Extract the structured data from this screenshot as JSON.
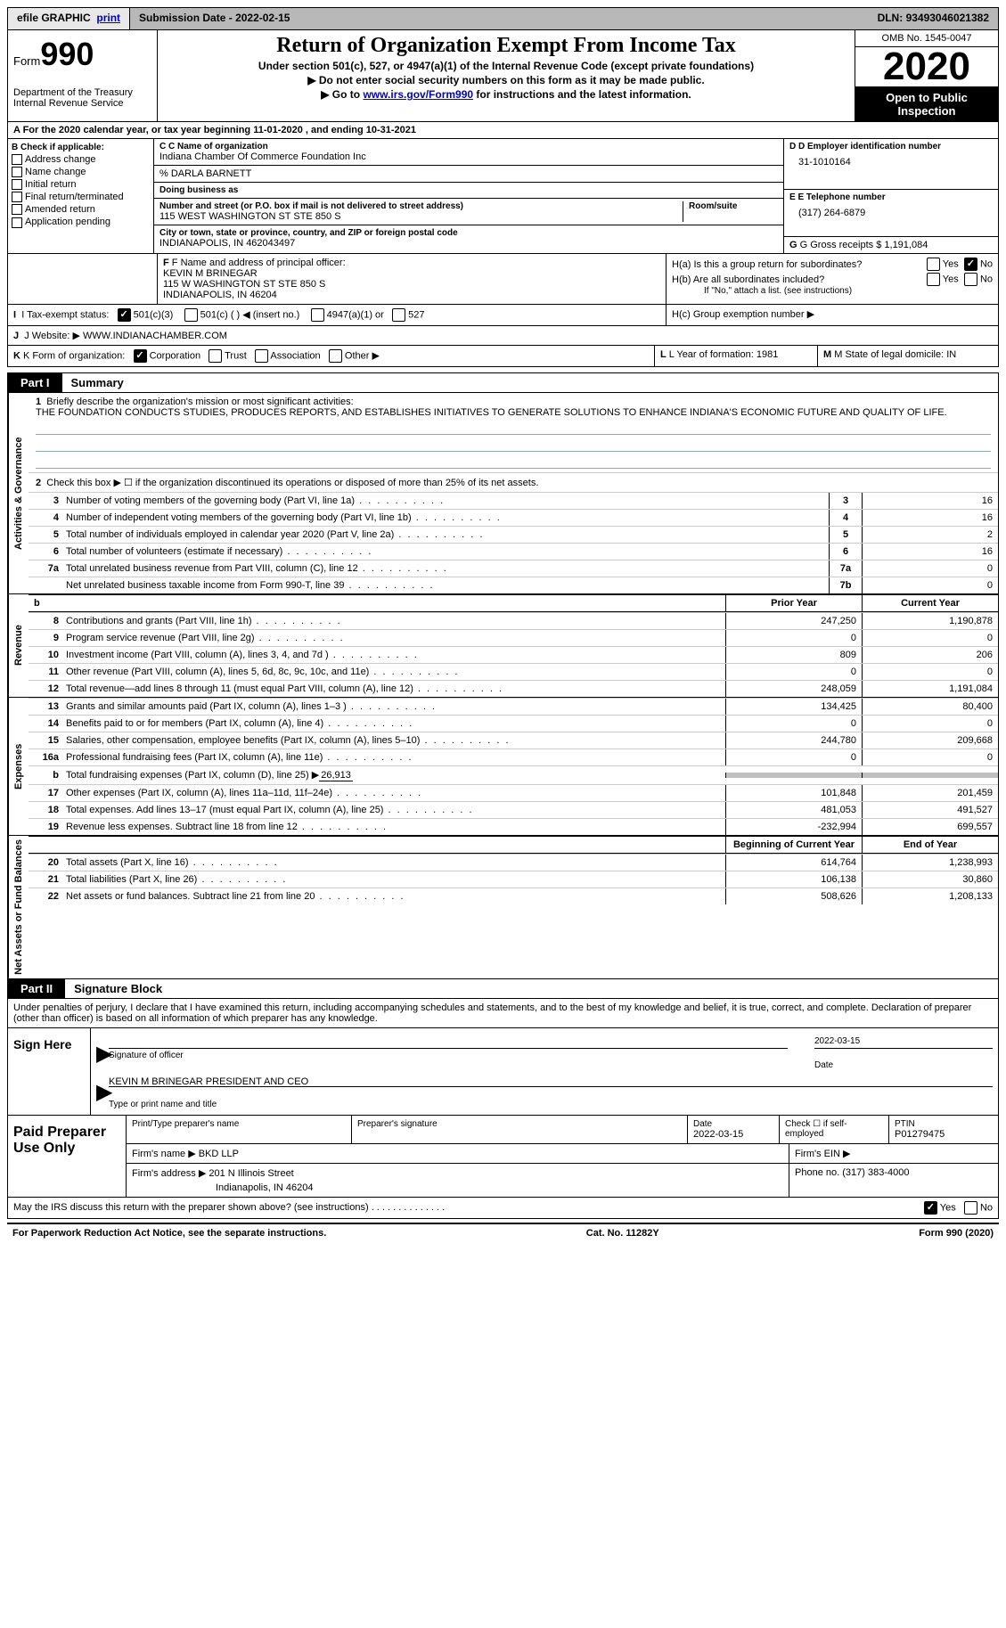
{
  "top": {
    "efile": "efile GRAPHIC",
    "print": "print",
    "sub_label": "Submission Date - ",
    "sub_date": "2022-02-15",
    "dln_label": "DLN: ",
    "dln": "93493046021382"
  },
  "header": {
    "form_word": "Form",
    "form_num": "990",
    "dept": "Department of the Treasury\nInternal Revenue Service",
    "title": "Return of Organization Exempt From Income Tax",
    "subtitle": "Under section 501(c), 527, or 4947(a)(1) of the Internal Revenue Code (except private foundations)",
    "note1": "▶ Do not enter social security numbers on this form as it may be made public.",
    "note2_pre": "▶ Go to ",
    "note2_link": "www.irs.gov/Form990",
    "note2_post": " for instructions and the latest information.",
    "omb": "OMB No. 1545-0047",
    "year": "2020",
    "open1": "Open to Public",
    "open2": "Inspection"
  },
  "period": {
    "text": "A For the 2020 calendar year, or tax year beginning 11-01-2020    , and ending 10-31-2021"
  },
  "sectionB": {
    "label": "B Check if applicable:",
    "items": [
      "Address change",
      "Name change",
      "Initial return",
      "Final return/terminated",
      "Amended return",
      "Application pending"
    ]
  },
  "sectionC": {
    "name_label": "C Name of organization",
    "name": "Indiana Chamber Of Commerce Foundation Inc",
    "care_of": "% DARLA BARNETT",
    "dba_label": "Doing business as",
    "dba": "",
    "street_label": "Number and street (or P.O. box if mail is not delivered to street address)",
    "room_label": "Room/suite",
    "street": "115 WEST WASHINGTON ST STE 850 S",
    "city_label": "City or town, state or province, country, and ZIP or foreign postal code",
    "city": "INDIANAPOLIS, IN  462043497"
  },
  "sectionD": {
    "label": "D Employer identification number",
    "val": "31-1010164"
  },
  "sectionE": {
    "label": "E Telephone number",
    "val": "(317) 264-6879"
  },
  "sectionG": {
    "label": "G Gross receipts $ ",
    "val": "1,191,084"
  },
  "sectionF": {
    "label": "F Name and address of principal officer:",
    "name": "KEVIN M BRINEGAR",
    "addr1": "115 W WASHINGTON ST STE 850 S",
    "addr2": "INDIANAPOLIS, IN  46204"
  },
  "sectionH": {
    "ha": "H(a)  Is this a group return for subordinates?",
    "hb": "H(b)  Are all subordinates included?",
    "hb_note": "If \"No,\" attach a list. (see instructions)",
    "hc": "H(c)  Group exemption number ▶",
    "yes": "Yes",
    "no": "No"
  },
  "sectionI": {
    "label": "I  Tax-exempt status:",
    "opts": [
      "501(c)(3)",
      "501(c) (  ) ◀ (insert no.)",
      "4947(a)(1) or",
      "527"
    ]
  },
  "sectionJ": {
    "label": "J  Website: ▶ ",
    "val": "WWW.INDIANACHAMBER.COM"
  },
  "sectionK": {
    "label": "K Form of organization:",
    "opts": [
      "Corporation",
      "Trust",
      "Association",
      "Other ▶"
    ]
  },
  "sectionL": {
    "label": "L Year of formation: ",
    "val": "1981"
  },
  "sectionM": {
    "label": "M State of legal domicile: ",
    "val": "IN"
  },
  "part1": {
    "tag": "Part I",
    "title": "Summary",
    "tabs": {
      "gov": "Activities & Governance",
      "rev": "Revenue",
      "exp": "Expenses",
      "net": "Net Assets or Fund Balances"
    },
    "q1_label": "Briefly describe the organization's mission or most significant activities:",
    "q1_text": "THE FOUNDATION CONDUCTS STUDIES, PRODUCES REPORTS, AND ESTABLISHES INITIATIVES TO GENERATE SOLUTIONS TO ENHANCE INDIANA'S ECONOMIC FUTURE AND QUALITY OF LIFE.",
    "q2": "Check this box ▶ ☐  if the organization discontinued its operations or disposed of more than 25% of its net assets.",
    "rows_gov": [
      {
        "n": "3",
        "d": "Number of voting members of the governing body (Part VI, line 1a)",
        "box": "3",
        "v": "16"
      },
      {
        "n": "4",
        "d": "Number of independent voting members of the governing body (Part VI, line 1b)",
        "box": "4",
        "v": "16"
      },
      {
        "n": "5",
        "d": "Total number of individuals employed in calendar year 2020 (Part V, line 2a)",
        "box": "5",
        "v": "2"
      },
      {
        "n": "6",
        "d": "Total number of volunteers (estimate if necessary)",
        "box": "6",
        "v": "16"
      },
      {
        "n": "7a",
        "d": "Total unrelated business revenue from Part VIII, column (C), line 12",
        "box": "7a",
        "v": "0"
      },
      {
        "n": "",
        "d": "Net unrelated business taxable income from Form 990-T, line 39",
        "box": "7b",
        "v": "0"
      }
    ],
    "col_prior": "Prior Year",
    "col_curr": "Current Year",
    "rows_rev": [
      {
        "n": "8",
        "d": "Contributions and grants (Part VIII, line 1h)",
        "p": "247,250",
        "c": "1,190,878"
      },
      {
        "n": "9",
        "d": "Program service revenue (Part VIII, line 2g)",
        "p": "0",
        "c": "0"
      },
      {
        "n": "10",
        "d": "Investment income (Part VIII, column (A), lines 3, 4, and 7d )",
        "p": "809",
        "c": "206"
      },
      {
        "n": "11",
        "d": "Other revenue (Part VIII, column (A), lines 5, 6d, 8c, 9c, 10c, and 11e)",
        "p": "0",
        "c": "0"
      },
      {
        "n": "12",
        "d": "Total revenue—add lines 8 through 11 (must equal Part VIII, column (A), line 12)",
        "p": "248,059",
        "c": "1,191,084"
      }
    ],
    "rows_exp": [
      {
        "n": "13",
        "d": "Grants and similar amounts paid (Part IX, column (A), lines 1–3 )",
        "p": "134,425",
        "c": "80,400"
      },
      {
        "n": "14",
        "d": "Benefits paid to or for members (Part IX, column (A), line 4)",
        "p": "0",
        "c": "0"
      },
      {
        "n": "15",
        "d": "Salaries, other compensation, employee benefits (Part IX, column (A), lines 5–10)",
        "p": "244,780",
        "c": "209,668"
      },
      {
        "n": "16a",
        "d": "Professional fundraising fees (Part IX, column (A), line 11e)",
        "p": "0",
        "c": "0"
      },
      {
        "n": "b",
        "d": "Total fundraising expenses (Part IX, column (D), line 25) ▶26,913",
        "p": "GRAY",
        "c": "GRAY"
      },
      {
        "n": "17",
        "d": "Other expenses (Part IX, column (A), lines 11a–11d, 11f–24e)",
        "p": "101,848",
        "c": "201,459"
      },
      {
        "n": "18",
        "d": "Total expenses. Add lines 13–17 (must equal Part IX, column (A), line 25)",
        "p": "481,053",
        "c": "491,527"
      },
      {
        "n": "19",
        "d": "Revenue less expenses. Subtract line 18 from line 12",
        "p": "-232,994",
        "c": "699,557"
      }
    ],
    "col_begin": "Beginning of Current Year",
    "col_end": "End of Year",
    "rows_net": [
      {
        "n": "20",
        "d": "Total assets (Part X, line 16)",
        "p": "614,764",
        "c": "1,238,993"
      },
      {
        "n": "21",
        "d": "Total liabilities (Part X, line 26)",
        "p": "106,138",
        "c": "30,860"
      },
      {
        "n": "22",
        "d": "Net assets or fund balances. Subtract line 21 from line 20",
        "p": "508,626",
        "c": "1,208,133"
      }
    ]
  },
  "part2": {
    "tag": "Part II",
    "title": "Signature Block",
    "decl": "Under penalties of perjury, I declare that I have examined this return, including accompanying schedules and statements, and to the best of my knowledge and belief, it is true, correct, and complete. Declaration of preparer (other than officer) is based on all information of which preparer has any knowledge.",
    "sign_here": "Sign Here",
    "sig_of_officer": "Signature of officer",
    "sig_date_label": "Date",
    "sig_date": "2022-03-15",
    "officer_name": "KEVIN M BRINEGAR  PRESIDENT AND CEO",
    "officer_name_label": "Type or print name and title"
  },
  "prep": {
    "title": "Paid Preparer Use Only",
    "r1": {
      "c1_label": "Print/Type preparer's name",
      "c2_label": "Preparer's signature",
      "c3_label": "Date",
      "c3_val": "2022-03-15",
      "c4_label": "Check ☐ if self-employed",
      "c5_label": "PTIN",
      "c5_val": "P01279475"
    },
    "r2": {
      "firm_label": "Firm's name    ▶ ",
      "firm": "BKD LLP",
      "ein_label": "Firm's EIN ▶"
    },
    "r3": {
      "addr_label": "Firm's address ▶ ",
      "addr1": "201 N Illinois Street",
      "addr2": "Indianapolis, IN  46204",
      "phone_label": "Phone no. ",
      "phone": "(317) 383-4000"
    }
  },
  "discuss": {
    "text": "May the IRS discuss this return with the preparer shown above? (see instructions)",
    "yes": "Yes",
    "no": "No"
  },
  "footer": {
    "left": "For Paperwork Reduction Act Notice, see the separate instructions.",
    "center": "Cat. No. 11282Y",
    "right": "Form 990 (2020)"
  },
  "style": {
    "fg": "#000000",
    "bg": "#ffffff",
    "accent_blue": "#0000cc",
    "header_gray": "#b8b8b8",
    "btn_gray": "#e8e8e8",
    "cell_gray": "#c0c0c0"
  }
}
